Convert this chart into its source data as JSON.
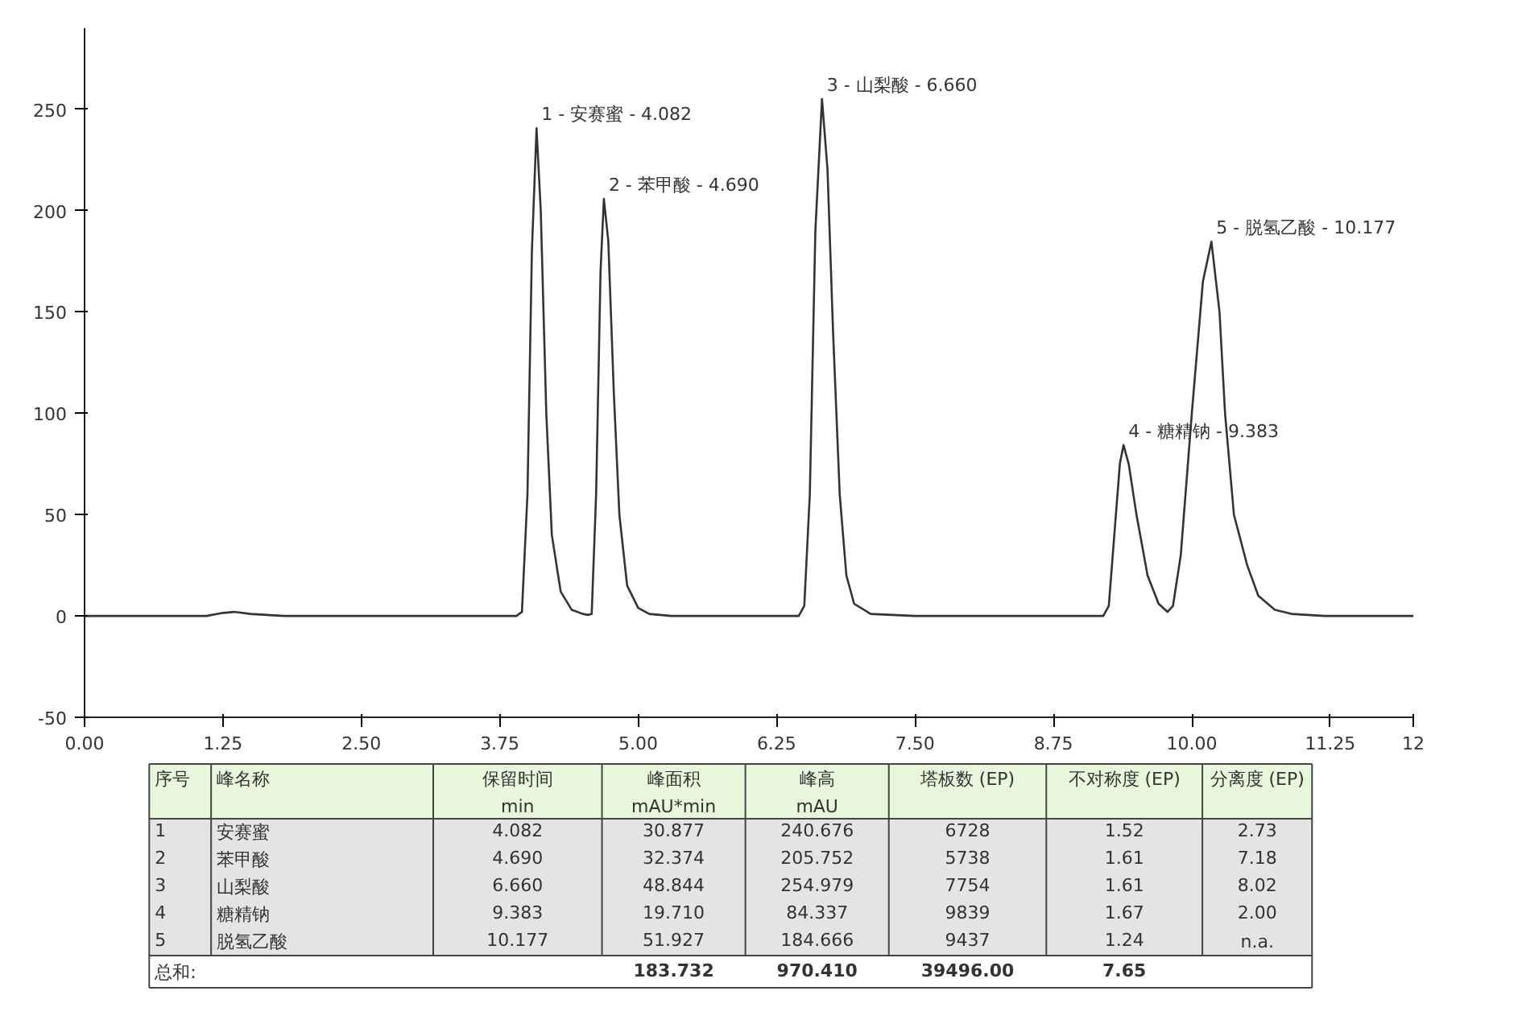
{
  "chart_data": {
    "type": "line",
    "x": [
      0,
      1.1,
      1.25,
      1.35,
      1.5,
      1.8,
      3.9,
      3.95,
      4.0,
      4.04,
      4.082,
      4.12,
      4.17,
      4.22,
      4.3,
      4.4,
      4.5,
      4.55,
      4.58,
      4.62,
      4.66,
      4.69,
      4.73,
      4.78,
      4.83,
      4.9,
      5.0,
      5.1,
      5.3,
      6.45,
      6.5,
      6.55,
      6.6,
      6.66,
      6.71,
      6.76,
      6.82,
      6.88,
      6.95,
      7.1,
      7.5,
      9.2,
      9.25,
      9.3,
      9.35,
      9.383,
      9.43,
      9.5,
      9.6,
      9.7,
      9.78,
      9.83,
      9.9,
      10.0,
      10.1,
      10.177,
      10.25,
      10.3,
      10.38,
      10.5,
      10.6,
      10.75,
      10.9,
      11.2,
      12
    ],
    "values": [
      0,
      0,
      1.5,
      2,
      1,
      0,
      0,
      2,
      60,
      180,
      240.676,
      200,
      100,
      40,
      12,
      3,
      1,
      0.5,
      1,
      60,
      170,
      205.752,
      185,
      110,
      50,
      15,
      4,
      1,
      0,
      0,
      5,
      60,
      190,
      254.979,
      220,
      140,
      60,
      20,
      6,
      1,
      0,
      0,
      5,
      40,
      75,
      84.337,
      75,
      50,
      20,
      6,
      2,
      5,
      30,
      100,
      165,
      184.666,
      150,
      100,
      50,
      25,
      10,
      3,
      1,
      0,
      0
    ],
    "color": "#333333",
    "xlim": [
      0,
      12
    ],
    "ylim": [
      -50,
      290
    ],
    "xticks": [
      {
        "value": 0,
        "label": "0.00"
      },
      1.25,
      {
        "value": 2.5,
        "label": "2.50"
      },
      3.75,
      {
        "value": 5,
        "label": "5.00"
      },
      6.25,
      {
        "value": 7.5,
        "label": "7.50"
      },
      8.75,
      {
        "value": 10,
        "label": "10.00"
      },
      11.25,
      12
    ],
    "yticks": [
      -50,
      0,
      50,
      100,
      150,
      200,
      250
    ],
    "annotations": [
      {
        "text": "1 - 安赛蜜 - 4.082",
        "x": 4.082,
        "y": 240.676
      },
      {
        "text": "2 - 苯甲酸 - 4.690",
        "x": 4.69,
        "y": 205.752
      },
      {
        "text": "3 - 山梨酸 - 6.660",
        "x": 6.66,
        "y": 254.979
      },
      {
        "text": "4 - 糖精钠 - 9.383",
        "x": 9.383,
        "y": 84.337
      },
      {
        "text": "5 - 脱氢乙酸 - 10.177",
        "x": 10.177,
        "y": 184.666
      },
      "序号",
      "峰名称",
      "保留时间\nmin",
      "峰面积\nmAU*min",
      "峰高\nmAU",
      "塔板数 (EP)",
      "不对称度 (EP)",
      "分离度 (EP)",
      "1",
      "安赛蜜",
      "4.082",
      "30.877",
      "240.676",
      "6728",
      "1.52",
      "2.73",
      "2",
      "苯甲酸",
      "4.690",
      "32.374",
      "205.752",
      "5738",
      "1.61",
      "7.18",
      "3",
      "山梨酸",
      "6.660",
      "48.844",
      "254.979",
      "7754",
      "1.61",
      "8.02",
      "4",
      "糖精钠",
      "9.383",
      "19.710",
      "84.337",
      "9839",
      "1.67",
      "2.00",
      "5",
      "脱氢乙酸",
      "10.177",
      "51.927",
      "184.666",
      "9437",
      "1.24",
      "n.a.",
      "总和:",
      "183.732",
      "970.410",
      "39496.00",
      "7.65"
    ]
  }
}
